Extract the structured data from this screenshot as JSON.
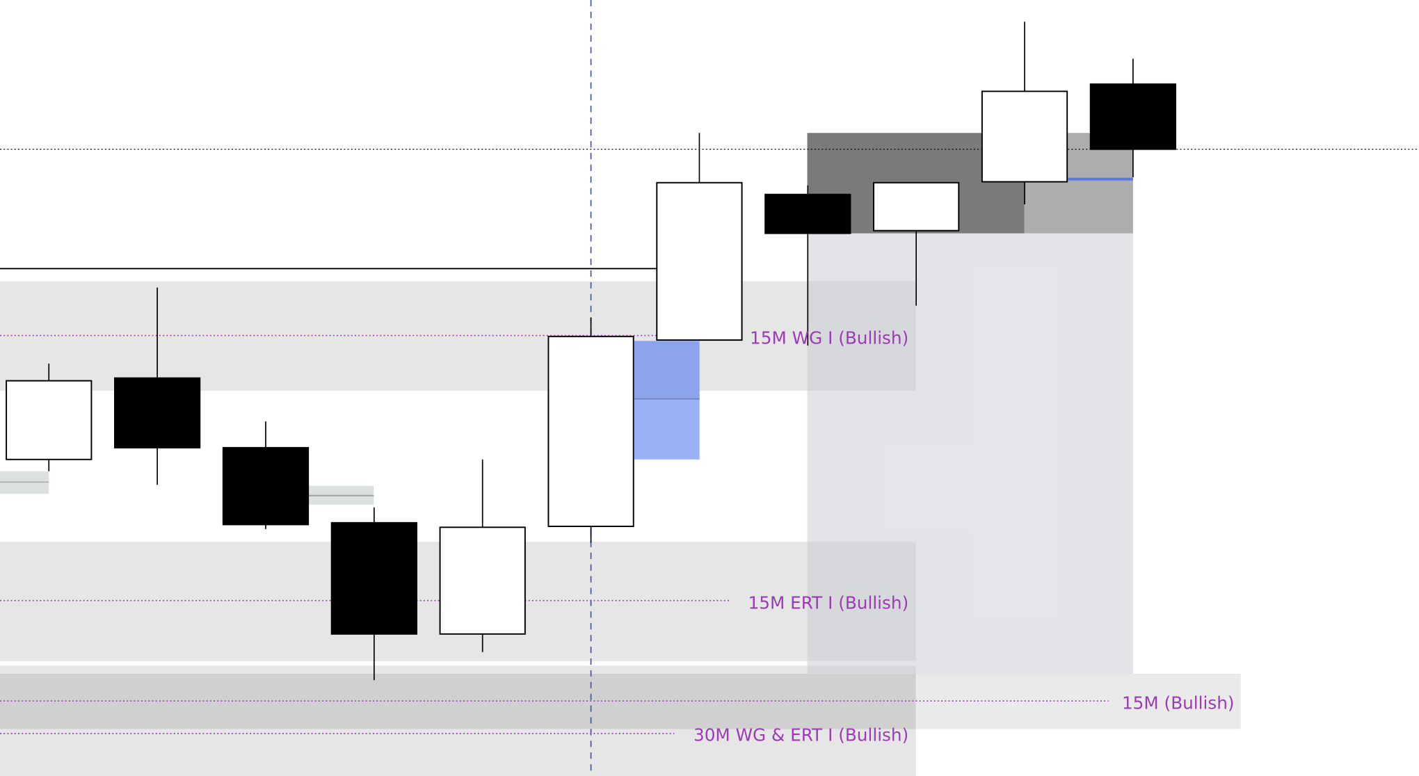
{
  "chart_data": {
    "type": "candlestick",
    "title": "",
    "xlabel": "",
    "ylabel": "",
    "grid": false,
    "colors": {
      "bullish_body": "#ffffff",
      "bearish_body": "#000000",
      "zone_fill": "#e6e6e6",
      "zone_label": "#9b3bb5",
      "cursor_line": "#3a56a8",
      "imbalance_fill": "#9bb1f7",
      "range_dark": "#7a7a7a",
      "range_light": "#adadad"
    },
    "candles": [
      {
        "open": 350,
        "high": 456,
        "low": 337,
        "close": 437
      },
      {
        "open": 440,
        "high": 540,
        "low": 322,
        "close": 363
      },
      {
        "open": 363,
        "high": 392,
        "low": 273,
        "close": 278
      },
      {
        "open": 280,
        "high": 297,
        "low": 106,
        "close": 157
      },
      {
        "open": 157,
        "high": 350,
        "low": 137,
        "close": 275
      },
      {
        "open": 276,
        "high": 507,
        "low": 258,
        "close": 486
      },
      {
        "open": 482,
        "high": 711,
        "low": 482,
        "close": 656
      },
      {
        "open": 643,
        "high": 653,
        "low": 476,
        "close": 600
      },
      {
        "open": 603,
        "high": 656,
        "low": 520,
        "close": 656
      },
      {
        "open": 657,
        "high": 834,
        "low": 632,
        "close": 757
      },
      {
        "open": 765,
        "high": 793,
        "low": 662,
        "close": 693
      }
    ],
    "zones": [
      {
        "label": "15M WG I (Bullish)"
      },
      {
        "label": "15M ERT I (Bullish)"
      },
      {
        "label": "30M WG & ERT I (Bullish)"
      },
      {
        "label": "15M (Bullish)"
      }
    ]
  }
}
